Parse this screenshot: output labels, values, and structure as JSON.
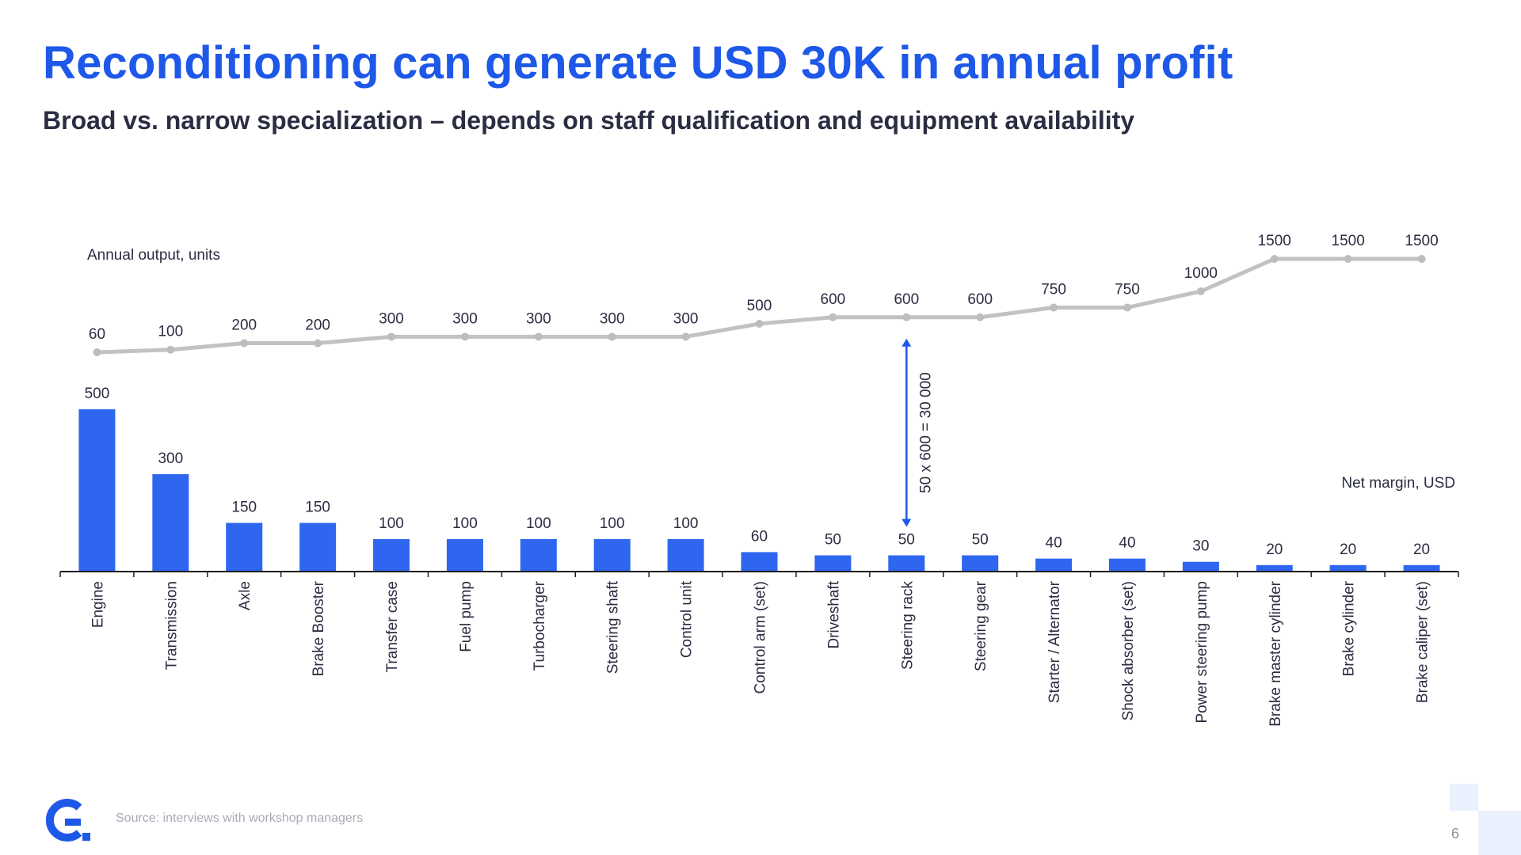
{
  "title": "Reconditioning can generate USD 30K in annual profit",
  "subtitle": "Broad vs. narrow specialization – depends on staff qualification and equipment availability",
  "source": "Source: interviews with workshop managers",
  "page_number": "6",
  "logo_icon": "company-logo-g-icon",
  "colors": {
    "brand_blue": "#1e58e8",
    "bar_blue": "#2f66f0",
    "line_gray": "#c2c2c2",
    "axis": "#1f1f1f",
    "text_dark": "#2b2d42"
  },
  "chart_data": {
    "type": "bar+line",
    "categories": [
      "Engine",
      "Transmission",
      "Axle",
      "Brake Booster",
      "Transfer case",
      "Fuel pump",
      "Turbocharger",
      "Steering shaft",
      "Control unit",
      "Control arm (set)",
      "Driveshaft",
      "Steering rack",
      "Steering gear",
      "Starter / Alternator",
      "Shock absorber (set)",
      "Power steering pump",
      "Brake master cylinder",
      "Brake cylinder",
      "Brake caliper (set)"
    ],
    "series": [
      {
        "name": "Net margin, USD",
        "type": "bar",
        "values": [
          500,
          300,
          150,
          150,
          100,
          100,
          100,
          100,
          100,
          60,
          50,
          50,
          50,
          40,
          40,
          30,
          20,
          20,
          20
        ]
      },
      {
        "name": "Annual output, units",
        "type": "line",
        "values": [
          60,
          100,
          200,
          200,
          300,
          300,
          300,
          300,
          300,
          500,
          600,
          600,
          600,
          750,
          750,
          1000,
          1500,
          1500,
          1500
        ]
      }
    ],
    "annotation": {
      "text": "50 x 600 = 30 000",
      "category": "Steering rack"
    },
    "grid": false,
    "legend": "none (series named by text labels)"
  }
}
